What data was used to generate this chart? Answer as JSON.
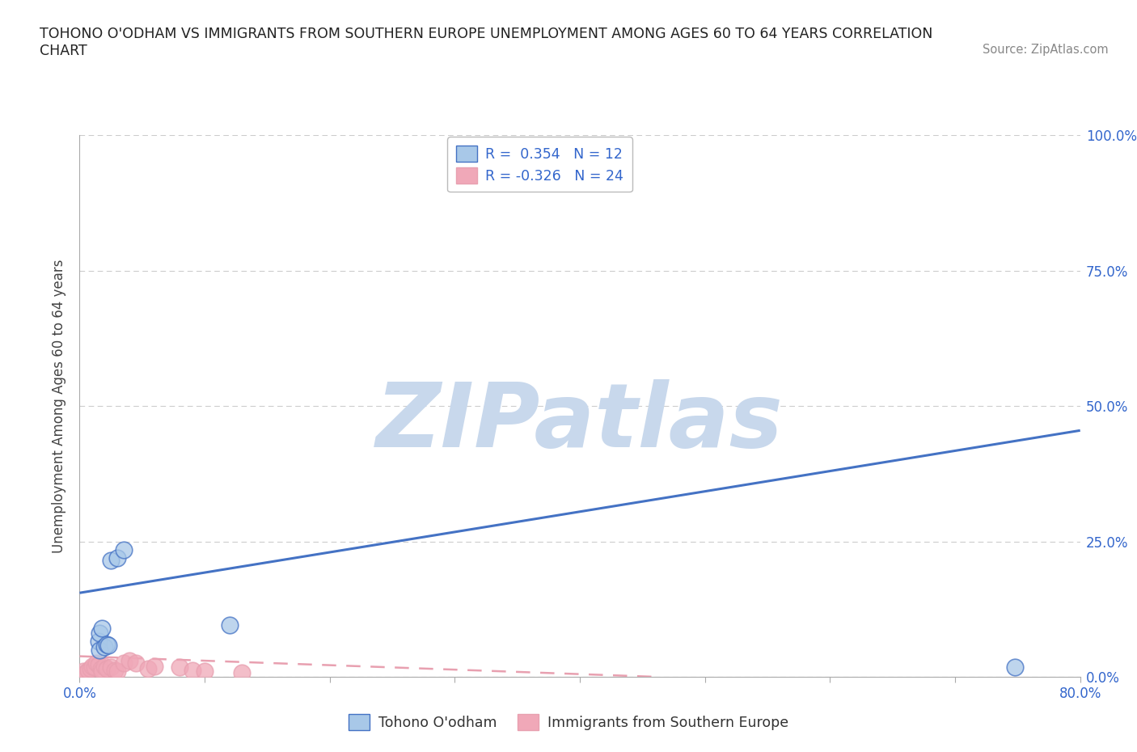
{
  "title_line1": "TOHONO O'ODHAM VS IMMIGRANTS FROM SOUTHERN EUROPE UNEMPLOYMENT AMONG AGES 60 TO 64 YEARS CORRELATION",
  "title_line2": "CHART",
  "source_text": "Source: ZipAtlas.com",
  "ylabel": "Unemployment Among Ages 60 to 64 years",
  "xlim": [
    0.0,
    0.8
  ],
  "ylim": [
    0.0,
    1.0
  ],
  "xtick_pos": [
    0.0,
    0.1,
    0.2,
    0.3,
    0.4,
    0.5,
    0.6,
    0.7,
    0.8
  ],
  "xticklabels": [
    "0.0%",
    "",
    "",
    "",
    "",
    "",
    "",
    "",
    "80.0%"
  ],
  "ytick_positions": [
    0.0,
    0.25,
    0.5,
    0.75,
    1.0
  ],
  "ytick_labels": [
    "0.0%",
    "25.0%",
    "50.0%",
    "75.0%",
    "100.0%"
  ],
  "blue_scatter_x": [
    0.025,
    0.03,
    0.035,
    0.015,
    0.016,
    0.018,
    0.12,
    0.748,
    0.016,
    0.02,
    0.022,
    0.023
  ],
  "blue_scatter_y": [
    0.215,
    0.22,
    0.235,
    0.065,
    0.08,
    0.09,
    0.095,
    0.018,
    0.05,
    0.055,
    0.06,
    0.058
  ],
  "pink_scatter_x": [
    0.003,
    0.005,
    0.007,
    0.009,
    0.01,
    0.012,
    0.013,
    0.015,
    0.017,
    0.018,
    0.02,
    0.022,
    0.025,
    0.028,
    0.03,
    0.035,
    0.04,
    0.045,
    0.055,
    0.06,
    0.08,
    0.09,
    0.1,
    0.13
  ],
  "pink_scatter_y": [
    0.01,
    0.008,
    0.012,
    0.015,
    0.02,
    0.018,
    0.025,
    0.022,
    0.015,
    0.01,
    0.02,
    0.015,
    0.018,
    0.012,
    0.01,
    0.025,
    0.03,
    0.025,
    0.015,
    0.02,
    0.018,
    0.012,
    0.01,
    0.008
  ],
  "blue_R": 0.354,
  "blue_N": 12,
  "pink_R": -0.326,
  "pink_N": 24,
  "blue_color": "#A8C8E8",
  "pink_color": "#F0A8B8",
  "blue_line_color": "#4472C4",
  "pink_line_color": "#E8A0B0",
  "trend_blue_x0": 0.0,
  "trend_blue_y0": 0.155,
  "trend_blue_x1": 0.8,
  "trend_blue_y1": 0.455,
  "trend_pink_x0": 0.0,
  "trend_pink_y0": 0.038,
  "trend_pink_x1": 0.46,
  "trend_pink_y1": 0.0,
  "watermark_text": "ZIPatlas",
  "watermark_color": "#C8D8EC",
  "legend_blue_label": "Tohono O'odham",
  "legend_pink_label": "Immigrants from Southern Europe",
  "background_color": "#FFFFFF",
  "grid_color": "#CCCCCC",
  "title_color": "#222222",
  "axis_label_color": "#444444",
  "tick_label_color": "#3366CC",
  "source_color": "#888888",
  "scatter_marker_size": 220
}
